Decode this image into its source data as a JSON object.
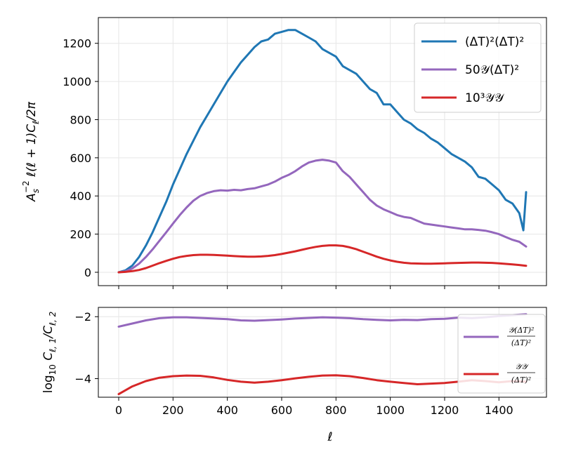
{
  "chart_data": [
    {
      "type": "line",
      "panel": "top",
      "title": "",
      "xlabel": "",
      "ylabel": "A_s^{-2} ℓ(ℓ+1)C_ℓ/2π",
      "ylabel_parts": {
        "main": "A",
        "sub": "s",
        "sup": "−2",
        "rest": " ℓ(ℓ + 1)C",
        "sub2": "ℓ",
        "tail": "/2π"
      },
      "xlim": [
        -75,
        1575
      ],
      "ylim": [
        -70,
        1335
      ],
      "xticks": [
        0,
        200,
        400,
        600,
        800,
        1000,
        1200,
        1400
      ],
      "yticks": [
        0,
        200,
        400,
        600,
        800,
        1000,
        1200
      ],
      "ytick_labels": [
        "0",
        "200",
        "400",
        "600",
        "800",
        "1000",
        "1200"
      ],
      "grid": true,
      "legend_position": "top-right",
      "series": [
        {
          "name": "(ΔT)²(ΔT)²",
          "legend_label": "(ΔT)²(ΔT)²",
          "color": "#1f77b4",
          "x": [
            0,
            25,
            50,
            75,
            100,
            125,
            150,
            175,
            200,
            225,
            250,
            275,
            300,
            325,
            350,
            375,
            400,
            425,
            450,
            475,
            500,
            525,
            550,
            575,
            600,
            625,
            650,
            675,
            700,
            725,
            750,
            775,
            800,
            825,
            850,
            875,
            900,
            925,
            950,
            975,
            1000,
            1025,
            1050,
            1075,
            1100,
            1125,
            1150,
            1175,
            1200,
            1225,
            1250,
            1275,
            1300,
            1325,
            1350,
            1375,
            1400,
            1425,
            1450,
            1475,
            1490,
            1500
          ],
          "y": [
            0,
            10,
            35,
            80,
            140,
            210,
            290,
            370,
            460,
            540,
            620,
            690,
            760,
            820,
            880,
            940,
            1000,
            1050,
            1100,
            1140,
            1180,
            1210,
            1220,
            1250,
            1260,
            1270,
            1270,
            1250,
            1230,
            1210,
            1170,
            1150,
            1130,
            1080,
            1060,
            1040,
            1000,
            960,
            940,
            880,
            880,
            840,
            800,
            780,
            750,
            730,
            700,
            680,
            650,
            620,
            600,
            580,
            550,
            500,
            490,
            460,
            430,
            380,
            360,
            310,
            220,
            420
          ]
        },
        {
          "name": "50𝒴(ΔT)²",
          "legend_label": "50𝒴(ΔT)²",
          "color": "#9467bd",
          "x": [
            0,
            25,
            50,
            75,
            100,
            125,
            150,
            175,
            200,
            225,
            250,
            275,
            300,
            325,
            350,
            375,
            400,
            425,
            450,
            475,
            500,
            525,
            550,
            575,
            600,
            625,
            650,
            675,
            700,
            725,
            750,
            775,
            800,
            825,
            850,
            875,
            900,
            925,
            950,
            975,
            1000,
            1025,
            1050,
            1075,
            1100,
            1125,
            1150,
            1175,
            1200,
            1225,
            1250,
            1275,
            1300,
            1325,
            1350,
            1375,
            1400,
            1425,
            1450,
            1475,
            1500
          ],
          "y": [
            0,
            5,
            20,
            45,
            80,
            120,
            165,
            210,
            255,
            300,
            340,
            375,
            400,
            415,
            425,
            430,
            428,
            432,
            430,
            436,
            440,
            450,
            460,
            475,
            495,
            510,
            530,
            555,
            575,
            585,
            590,
            585,
            575,
            530,
            500,
            460,
            420,
            380,
            350,
            330,
            315,
            300,
            290,
            285,
            270,
            255,
            250,
            245,
            240,
            235,
            230,
            225,
            225,
            222,
            218,
            210,
            200,
            185,
            170,
            160,
            135
          ]
        },
        {
          "name": "10³𝒴𝒴",
          "legend_label": "10³𝒴𝒴",
          "color": "#d62728",
          "x": [
            0,
            25,
            50,
            75,
            100,
            125,
            150,
            175,
            200,
            225,
            250,
            275,
            300,
            325,
            350,
            375,
            400,
            425,
            450,
            475,
            500,
            525,
            550,
            575,
            600,
            625,
            650,
            675,
            700,
            725,
            750,
            775,
            800,
            825,
            850,
            875,
            900,
            925,
            950,
            975,
            1000,
            1025,
            1050,
            1075,
            1100,
            1125,
            1150,
            1175,
            1200,
            1225,
            1250,
            1275,
            1300,
            1325,
            1350,
            1375,
            1400,
            1425,
            1450,
            1475,
            1500
          ],
          "y": [
            0,
            2,
            6,
            12,
            22,
            35,
            48,
            60,
            71,
            80,
            86,
            90,
            92,
            92,
            91,
            89,
            87,
            85,
            83,
            82,
            82,
            83,
            86,
            90,
            96,
            103,
            110,
            118,
            126,
            133,
            138,
            141,
            141,
            138,
            131,
            121,
            108,
            95,
            82,
            71,
            62,
            55,
            50,
            47,
            46,
            45,
            45,
            46,
            47,
            48,
            49,
            50,
            51,
            51,
            50,
            49,
            47,
            44,
            41,
            38,
            34
          ]
        }
      ]
    },
    {
      "type": "line",
      "panel": "bottom",
      "title": "",
      "xlabel": "ℓ",
      "ylabel": "log₁₀ C_{ℓ,1}/C_{ℓ,2}",
      "ylabel_parts": {
        "main": "log",
        "sub": "10",
        "rest": " C",
        "sub2": "ℓ, 1",
        "mid": "/C",
        "sub3": "ℓ, 2"
      },
      "xlim": [
        -75,
        1575
      ],
      "ylim": [
        -4.6,
        -1.7
      ],
      "xticks": [
        0,
        200,
        400,
        600,
        800,
        1000,
        1200,
        1400
      ],
      "xtick_labels": [
        "0",
        "200",
        "400",
        "600",
        "800",
        "1000",
        "1200",
        "1400"
      ],
      "yticks": [
        -4,
        -2
      ],
      "ytick_labels": [
        "−4",
        "−2"
      ],
      "grid": true,
      "legend_position": "bottom-right",
      "series": [
        {
          "name": "𝒴(ΔT)²/(ΔT)²",
          "legend_num": "𝒴(ΔT)²",
          "legend_den": "(ΔT)²",
          "color": "#9467bd",
          "x": [
            0,
            50,
            100,
            150,
            200,
            250,
            300,
            350,
            400,
            450,
            500,
            550,
            600,
            650,
            700,
            750,
            800,
            850,
            900,
            950,
            1000,
            1050,
            1100,
            1150,
            1200,
            1250,
            1300,
            1350,
            1400,
            1450,
            1500
          ],
          "y": [
            -2.32,
            -2.22,
            -2.12,
            -2.05,
            -2.02,
            -2.02,
            -2.04,
            -2.06,
            -2.08,
            -2.12,
            -2.13,
            -2.11,
            -2.09,
            -2.06,
            -2.04,
            -2.02,
            -2.03,
            -2.05,
            -2.08,
            -2.1,
            -2.12,
            -2.1,
            -2.11,
            -2.08,
            -2.07,
            -2.03,
            -2.05,
            -2.02,
            -1.98,
            -1.95,
            -1.92
          ]
        },
        {
          "name": "𝒴𝒴/(ΔT)²",
          "legend_num": "𝒴𝒴",
          "legend_den": "(ΔT)²",
          "color": "#d62728",
          "x": [
            0,
            50,
            100,
            150,
            200,
            250,
            300,
            350,
            400,
            450,
            500,
            550,
            600,
            650,
            700,
            750,
            800,
            850,
            900,
            950,
            1000,
            1050,
            1100,
            1150,
            1200,
            1250,
            1300,
            1350,
            1400,
            1450,
            1500
          ],
          "y": [
            -4.5,
            -4.25,
            -4.08,
            -3.97,
            -3.92,
            -3.9,
            -3.91,
            -3.96,
            -4.04,
            -4.1,
            -4.13,
            -4.1,
            -4.05,
            -3.99,
            -3.94,
            -3.9,
            -3.89,
            -3.92,
            -3.98,
            -4.05,
            -4.1,
            -4.14,
            -4.18,
            -4.16,
            -4.14,
            -4.1,
            -4.05,
            -4.08,
            -4.12,
            -4.08,
            -4.1
          ]
        }
      ]
    }
  ]
}
